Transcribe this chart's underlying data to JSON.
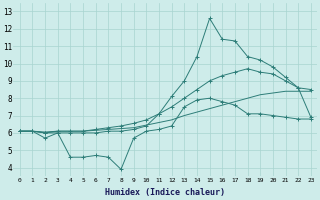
{
  "xlabel": "Humidex (Indice chaleur)",
  "xlim": [
    -0.5,
    23.5
  ],
  "ylim": [
    3.5,
    13.5
  ],
  "yticks": [
    4,
    5,
    6,
    7,
    8,
    9,
    10,
    11,
    12,
    13
  ],
  "xticks": [
    0,
    1,
    2,
    3,
    4,
    5,
    6,
    7,
    8,
    9,
    10,
    11,
    12,
    13,
    14,
    15,
    16,
    17,
    18,
    19,
    20,
    21,
    22,
    23
  ],
  "background_color": "#ceecea",
  "grid_color": "#a8d4d0",
  "line_color": "#2d7d78",
  "line_zigzag": [
    6.1,
    6.1,
    5.7,
    6.0,
    4.6,
    4.6,
    4.7,
    4.6,
    3.9,
    5.7,
    6.1,
    6.2,
    6.4,
    7.5,
    7.9,
    8.0,
    7.8,
    7.6,
    7.1,
    7.1,
    7.0,
    6.9,
    6.8,
    6.8
  ],
  "line_peak": [
    6.1,
    6.1,
    6.0,
    6.0,
    6.0,
    6.0,
    6.0,
    6.1,
    6.1,
    6.2,
    6.4,
    7.1,
    8.1,
    9.0,
    10.4,
    12.6,
    11.4,
    11.3,
    10.4,
    10.2,
    9.8,
    9.2,
    8.6,
    6.9
  ],
  "line_upper": [
    6.1,
    6.1,
    6.0,
    6.1,
    6.1,
    6.1,
    6.2,
    6.3,
    6.4,
    6.55,
    6.75,
    7.1,
    7.5,
    8.0,
    8.5,
    9.0,
    9.3,
    9.5,
    9.7,
    9.5,
    9.4,
    9.0,
    8.6,
    8.5
  ],
  "line_lower": [
    6.1,
    6.1,
    6.05,
    6.1,
    6.1,
    6.1,
    6.15,
    6.2,
    6.25,
    6.3,
    6.45,
    6.6,
    6.75,
    7.0,
    7.2,
    7.4,
    7.6,
    7.8,
    8.0,
    8.2,
    8.3,
    8.4,
    8.4,
    8.4
  ]
}
